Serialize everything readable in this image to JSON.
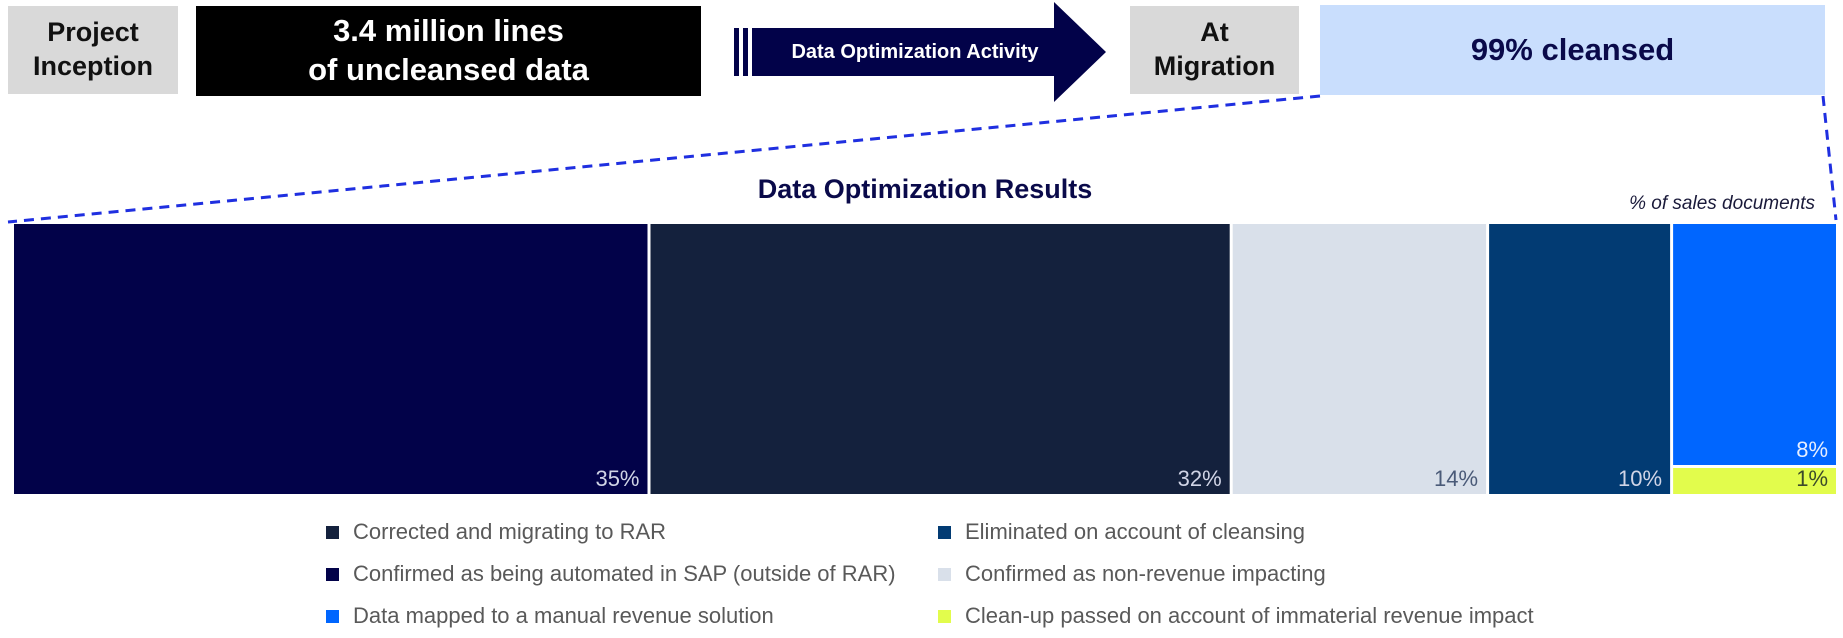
{
  "header": {
    "inception_line1": "Project",
    "inception_line2": "Inception",
    "lines_line1": "3.4 million lines",
    "lines_line2": "of uncleansed data",
    "activity": "Data Optimization Activity",
    "migration_line1": "At",
    "migration_line2": "Migration",
    "cleansed": "99% cleansed"
  },
  "chart_data": {
    "type": "bar",
    "title": "Data Optimization Results",
    "unit_note": "% of sales documents",
    "segments": [
      {
        "key": "automated",
        "value": 35,
        "label": "35%",
        "color": "#020249",
        "text_color": "#d0d4e6",
        "stack": 1
      },
      {
        "key": "corrected",
        "value": 32,
        "label": "32%",
        "color": "#14213d",
        "text_color": "#d0d4e6",
        "stack": 2
      },
      {
        "key": "nonrevenue",
        "value": 14,
        "label": "14%",
        "color": "#d9e0ea",
        "text_color": "#4a5a78",
        "stack": 3
      },
      {
        "key": "eliminated",
        "value": 10,
        "label": "10%",
        "color": "#023b73",
        "text_color": "#d0d4e6",
        "stack": 4
      },
      {
        "key": "manual",
        "value": 8,
        "label": "8%",
        "color": "#0066ff",
        "text_color": "#e6eeff",
        "stack": 5
      },
      {
        "key": "cleanup",
        "value": 1,
        "label": "1%",
        "color": "#e2fc4c",
        "text_color": "#3b4a2a",
        "stack": 5
      }
    ]
  },
  "legend": [
    {
      "label": "Corrected and migrating to RAR",
      "color": "#14213d"
    },
    {
      "label": "Eliminated on account of cleansing",
      "color": "#023b73"
    },
    {
      "label": "Confirmed as being automated in SAP (outside of RAR)",
      "color": "#020249"
    },
    {
      "label": "Confirmed as non-revenue impacting",
      "color": "#d9e0ea"
    },
    {
      "label": "Data mapped to a manual revenue solution",
      "color": "#0066ff"
    },
    {
      "label": "Clean-up passed on account of immaterial revenue impact",
      "color": "#e2fc4c"
    }
  ],
  "colors": {
    "arrow": "#020249",
    "zoom_line": "#1f2fe0"
  }
}
